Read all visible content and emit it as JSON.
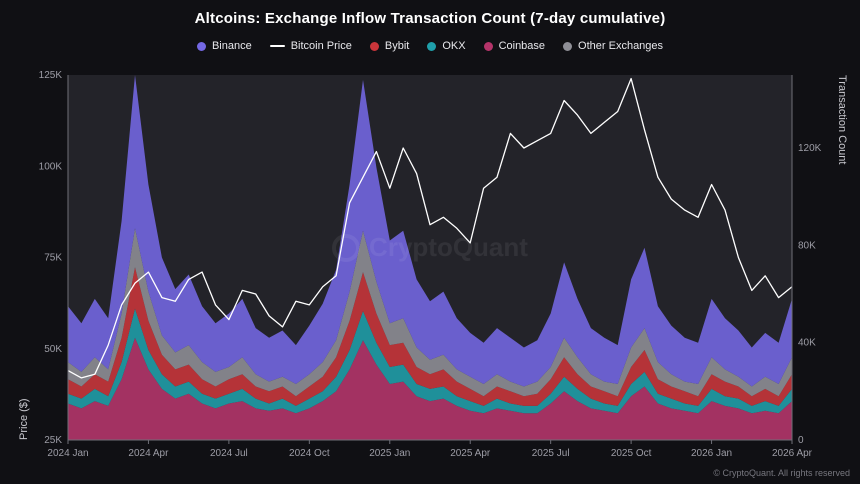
{
  "title": "Altcoins: Exchange Inflow Transaction Count (7-day cumulative)",
  "watermark": "CryptoQuant",
  "copyright": "© CryptoQuant. All rights reserved",
  "axes": {
    "left_label": "Price ($)",
    "right_label": "Transaction Count"
  },
  "colors": {
    "background": "#101014",
    "plot_background": "#232329",
    "axis_line": "#6f6f78",
    "tick_text": "#9d9da6",
    "title_text": "#ffffff"
  },
  "chart_data": {
    "type": "area",
    "subtype": "stacked areas (transaction count, right axis) with overlay line (Bitcoin price, left axis)",
    "units": "all series values in thousands; price in thousands of USD",
    "x_tick_labels": [
      "2024 Jan",
      "2024 Apr",
      "2024 Jul",
      "2024 Oct",
      "2025 Jan",
      "2025 Apr",
      "2025 Jul",
      "2025 Oct",
      "2026 Jan",
      "2026 Apr"
    ],
    "left_axis": {
      "label": "Price ($)",
      "min": 25,
      "max": 125,
      "ticks": [
        {
          "value": 25,
          "label": "25K"
        },
        {
          "value": 50,
          "label": "50K"
        },
        {
          "value": 75,
          "label": "75K"
        },
        {
          "value": 100,
          "label": "100K"
        },
        {
          "value": 125,
          "label": "125K"
        }
      ]
    },
    "right_axis": {
      "label": "Transaction Count",
      "min": 0,
      "max": 150,
      "ticks": [
        {
          "value": 0,
          "label": "0"
        },
        {
          "value": 40,
          "label": "40K"
        },
        {
          "value": 80,
          "label": "80K"
        },
        {
          "value": 120,
          "label": "120K"
        }
      ]
    },
    "stack_order_bottom_to_top": [
      "Coinbase",
      "OKX",
      "Bybit",
      "Other Exchanges",
      "Binance"
    ],
    "series": [
      {
        "name": "Binance",
        "type": "area",
        "axis": "right",
        "color": "#7468e4",
        "values": [
          23,
          20,
          24,
          21,
          38,
          63,
          44,
          32,
          26,
          29,
          23,
          20,
          22,
          24,
          19,
          18,
          19,
          16,
          20,
          24,
          29,
          44,
          62,
          47,
          34,
          36,
          28,
          24,
          26,
          21,
          18,
          17,
          19,
          18,
          16,
          17,
          22,
          31,
          24,
          19,
          18,
          16,
          28,
          33,
          23,
          20,
          18,
          17,
          24,
          21,
          19,
          16,
          18,
          17,
          24
        ]
      },
      {
        "name": "Bitcoin Price",
        "type": "line",
        "axis": "left",
        "color": "#ffffff",
        "values": [
          44,
          42,
          43,
          51,
          62,
          68,
          71,
          64,
          63,
          69,
          71,
          62,
          58,
          66,
          65,
          59,
          56,
          63,
          62,
          67,
          70,
          90,
          97,
          104,
          94,
          105,
          98,
          84,
          86,
          83,
          79,
          94,
          97,
          109,
          105,
          107,
          109,
          118,
          114,
          109,
          112,
          115,
          124,
          110,
          97,
          91,
          88,
          86,
          95,
          88,
          75,
          66,
          70,
          64,
          67
        ]
      },
      {
        "name": "Bybit",
        "type": "area",
        "axis": "right",
        "color": "#c9353a",
        "values": [
          6,
          5,
          6,
          6,
          10,
          17,
          12,
          8,
          7,
          7,
          6,
          5,
          6,
          6,
          5,
          5,
          5,
          4,
          5,
          6,
          8,
          12,
          16,
          12,
          9,
          9,
          7,
          6,
          7,
          6,
          5,
          4,
          5,
          5,
          4,
          5,
          6,
          8,
          6,
          5,
          5,
          4,
          7,
          9,
          6,
          5,
          5,
          4,
          6,
          6,
          5,
          4,
          5,
          4,
          6
        ]
      },
      {
        "name": "OKX",
        "type": "area",
        "axis": "right",
        "color": "#1f9faa",
        "values": [
          4,
          4,
          5,
          4,
          7,
          12,
          8,
          6,
          5,
          5,
          4,
          4,
          4,
          5,
          4,
          3,
          4,
          3,
          4,
          4,
          6,
          8,
          12,
          9,
          7,
          7,
          5,
          5,
          5,
          4,
          4,
          3,
          4,
          3,
          3,
          3,
          4,
          6,
          5,
          4,
          3,
          3,
          5,
          6,
          4,
          4,
          3,
          3,
          5,
          4,
          4,
          3,
          4,
          3,
          5
        ]
      },
      {
        "name": "Coinbase",
        "type": "area",
        "axis": "right",
        "color": "#b5346a",
        "values": [
          15,
          13,
          16,
          14,
          25,
          42,
          29,
          21,
          17,
          19,
          15,
          13,
          15,
          16,
          13,
          12,
          13,
          11,
          13,
          16,
          20,
          29,
          41,
          31,
          23,
          24,
          18,
          16,
          17,
          14,
          12,
          11,
          13,
          12,
          11,
          11,
          15,
          20,
          16,
          13,
          12,
          11,
          18,
          22,
          15,
          13,
          12,
          11,
          16,
          14,
          13,
          11,
          12,
          11,
          16
        ]
      },
      {
        "name": "Other Exchanges",
        "type": "area",
        "axis": "right",
        "color": "#8f8f96",
        "values": [
          7,
          6,
          7,
          5,
          10,
          16,
          12,
          8,
          7,
          8,
          7,
          6,
          5,
          7,
          5,
          4,
          4,
          5,
          5,
          6,
          7,
          12,
          17,
          13,
          9,
          10,
          8,
          6,
          6,
          5,
          5,
          5,
          5,
          4,
          4,
          5,
          5,
          8,
          7,
          5,
          4,
          5,
          8,
          9,
          7,
          5,
          4,
          5,
          7,
          5,
          4,
          4,
          5,
          5,
          7
        ]
      }
    ]
  }
}
